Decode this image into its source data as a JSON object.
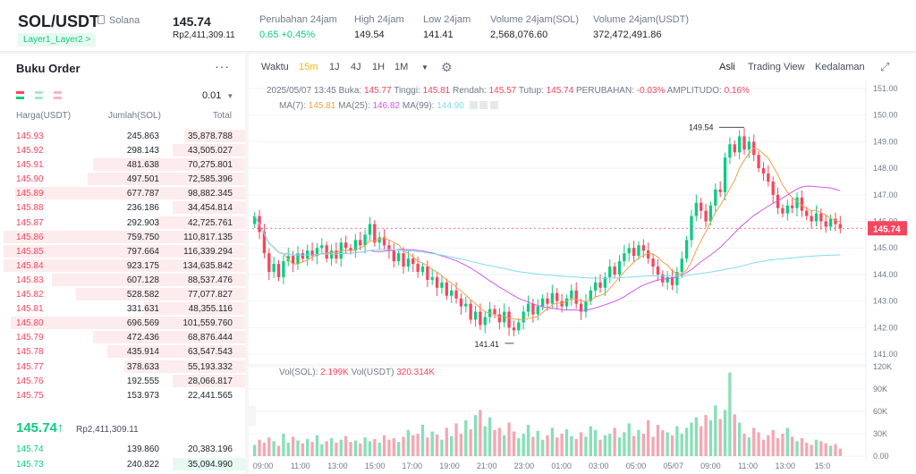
{
  "header": {
    "pair": "SOL/USDT",
    "network": "Solana",
    "tag": "Layer1_Layer2 >",
    "price": "145.74",
    "price_fiat": "Rp2,411,309.11",
    "stats": [
      {
        "label": "Perubahan 24jam",
        "value": "0.65 +0.45%",
        "positive": true
      },
      {
        "label": "High 24jam",
        "value": "149.54"
      },
      {
        "label": "Low 24jam",
        "value": "141.41"
      },
      {
        "label": "Volume 24jam(SOL)",
        "value": "2,568,076.60"
      },
      {
        "label": "Volume 24jam(USDT)",
        "value": "372,472,491.86"
      }
    ]
  },
  "orderbook": {
    "title": "Buku Order",
    "more": "···",
    "precision": "0.01",
    "col_price": "Harga(USDT)",
    "col_amount": "Jumlah(SOL)",
    "col_total": "Total",
    "asks": [
      {
        "p": "145.93",
        "a": "245.863",
        "t": "35,878.788",
        "d": 0.25
      },
      {
        "p": "145.92",
        "a": "298.143",
        "t": "43,505.027",
        "d": 0.3
      },
      {
        "p": "145.91",
        "a": "481.638",
        "t": "70,275.801",
        "d": 0.63
      },
      {
        "p": "145.90",
        "a": "497.501",
        "t": "72,585.396",
        "d": 0.65
      },
      {
        "p": "145.89",
        "a": "677.787",
        "t": "98,882.345",
        "d": 0.95
      },
      {
        "p": "145.88",
        "a": "236.186",
        "t": "34,454.814",
        "d": 0.3
      },
      {
        "p": "145.87",
        "a": "292.903",
        "t": "42,725.761",
        "d": 0.37
      },
      {
        "p": "145.86",
        "a": "759.750",
        "t": "110,817.135",
        "d": 1.0
      },
      {
        "p": "145.85",
        "a": "797.664",
        "t": "116,339.294",
        "d": 1.0
      },
      {
        "p": "145.84",
        "a": "923.175",
        "t": "134,635.842",
        "d": 1.0
      },
      {
        "p": "145.83",
        "a": "607.128",
        "t": "88,537.476",
        "d": 0.8
      },
      {
        "p": "145.82",
        "a": "528.582",
        "t": "77,077.827",
        "d": 0.7
      },
      {
        "p": "145.81",
        "a": "331.631",
        "t": "48,355.116",
        "d": 0.42
      },
      {
        "p": "145.80",
        "a": "696.569",
        "t": "101,559.760",
        "d": 0.97
      },
      {
        "p": "145.79",
        "a": "472.436",
        "t": "68,876.444",
        "d": 0.63
      },
      {
        "p": "145.78",
        "a": "435.914",
        "t": "63,547.543",
        "d": 0.57
      },
      {
        "p": "145.77",
        "a": "378.633",
        "t": "55,193.332",
        "d": 0.5
      },
      {
        "p": "145.76",
        "a": "192.555",
        "t": "28,066.817",
        "d": 0.3
      },
      {
        "p": "145.75",
        "a": "153.973",
        "t": "22,441.565",
        "d": 0.0
      }
    ],
    "last_price": "145.74↑",
    "last_fiat": "Rp2,411,309.11",
    "bids": [
      {
        "p": "145.74",
        "a": "139.860",
        "t": "20,383.196",
        "d": 0.0
      },
      {
        "p": "145.73",
        "a": "240.822",
        "t": "35,094.990",
        "d": 0.3
      }
    ]
  },
  "toolbar": {
    "time_label": "Waktu",
    "intervals": [
      "15m",
      "1J",
      "4J",
      "1H",
      "1M"
    ],
    "active_interval": "15m",
    "views": [
      "Asli",
      "Trading View",
      "Kedalaman"
    ],
    "active_view": "Asli"
  },
  "legend": {
    "date": "2025/05/07 13:45",
    "open_l": "Buka:",
    "open": "145.77",
    "high_l": "Tinggi:",
    "high": "145.81",
    "low_l": "Rendah:",
    "low": "145.57",
    "close_l": "Tutup:",
    "close": "145.74",
    "chg_l": "PERUBAHAN:",
    "chg": "-0.03%",
    "amp_l": "AMPLITUDO:",
    "amp": "0.16%",
    "ma7_l": "MA(7):",
    "ma7": "145.81",
    "ma25_l": "MA(25):",
    "ma25": "146.82",
    "ma99_l": "MA(99):",
    "ma99": "144.90",
    "vol_sol_l": "Vol(SOL):",
    "vol_sol": "2.199K",
    "vol_usdt_l": "Vol(USDT)",
    "vol_usdt": "320.314K",
    "colors": {
      "ma7": "#f0a04b",
      "ma25": "#d257e8",
      "ma99": "#7fdcf0",
      "up": "#0ecb81",
      "down": "#f6465d"
    }
  },
  "chart_data": {
    "type": "candlestick",
    "title": "SOL/USDT 15m",
    "price_axis": [
      "151.00",
      "150.00",
      "149.00",
      "148.00",
      "147.00",
      "146.00",
      "145.00",
      "144.00",
      "143.00",
      "142.00",
      "141.00"
    ],
    "ylim": [
      140.7,
      151.1
    ],
    "current_price": "145.74",
    "high_label": "149.54",
    "low_label": "141.41",
    "volume_axis": [
      "120K",
      "90K",
      "60K",
      "30K",
      "0.00"
    ],
    "volume_max": 120,
    "time_axis": [
      "09:00",
      "11:00",
      "13:00",
      "15:00",
      "17:00",
      "19:00",
      "21:00",
      "23:00",
      "01:00",
      "03:00",
      "05:00",
      "05/07",
      "09:00",
      "11:00",
      "13:00",
      "15:0"
    ],
    "closes": [
      146.2,
      145.6,
      144.8,
      144.1,
      144.4,
      143.9,
      144.5,
      144.7,
      144.4,
      144.8,
      144.6,
      144.9,
      144.7,
      145.0,
      145.1,
      144.6,
      144.9,
      144.6,
      145.2,
      145.0,
      144.9,
      145.3,
      145.1,
      145.5,
      145.9,
      145.2,
      145.4,
      145.1,
      144.9,
      144.5,
      144.8,
      144.3,
      144.6,
      144.4,
      144.1,
      144.3,
      143.8,
      143.9,
      143.5,
      143.7,
      143.2,
      143.4,
      143.1,
      142.8,
      142.9,
      142.3,
      142.6,
      142.1,
      142.4,
      142.7,
      142.5,
      142.2,
      142.6,
      142.0,
      141.9,
      142.2,
      142.6,
      142.9,
      142.5,
      142.8,
      143.1,
      142.9,
      143.3,
      143.0,
      142.8,
      143.1,
      143.4,
      142.9,
      142.6,
      143.0,
      143.4,
      143.7,
      143.5,
      143.9,
      144.3,
      144.0,
      144.5,
      144.8,
      145.0,
      144.7,
      145.1,
      144.9,
      144.6,
      144.3,
      144.0,
      143.7,
      143.9,
      143.6,
      144.1,
      144.6,
      145.3,
      146.2,
      146.7,
      146.4,
      146.0,
      146.6,
      147.2,
      147.1,
      148.4,
      148.9,
      148.6,
      149.2,
      148.7,
      149.0,
      148.5,
      148.0,
      147.8,
      147.5,
      147.0,
      146.5,
      146.3,
      146.6,
      146.5,
      146.9,
      146.4,
      146.2,
      146.0,
      146.3,
      146.0,
      145.8,
      146.1,
      145.9,
      145.74
    ],
    "volumes": [
      15,
      22,
      18,
      25,
      20,
      14,
      30,
      18,
      26,
      21,
      17,
      23,
      19,
      28,
      16,
      20,
      24,
      18,
      22,
      27,
      19,
      21,
      17,
      25,
      20,
      23,
      18,
      28,
      22,
      24,
      19,
      26,
      35,
      28,
      30,
      42,
      25,
      33,
      29,
      22,
      38,
      27,
      44,
      30,
      48,
      36,
      55,
      62,
      40,
      52,
      35,
      38,
      28,
      45,
      33,
      24,
      30,
      42,
      26,
      34,
      22,
      28,
      38,
      25,
      30,
      36,
      27,
      23,
      32,
      26,
      40,
      35,
      22,
      28,
      30,
      38,
      25,
      32,
      44,
      27,
      35,
      30,
      48,
      26,
      42,
      35,
      32,
      28,
      40,
      30,
      38,
      45,
      52,
      40,
      55,
      48,
      68,
      50,
      62,
      112,
      56,
      45,
      30,
      25,
      38,
      32,
      22,
      28,
      35,
      24,
      30,
      38,
      26,
      20,
      24,
      18,
      15,
      22,
      20,
      17,
      14,
      16,
      10
    ]
  }
}
